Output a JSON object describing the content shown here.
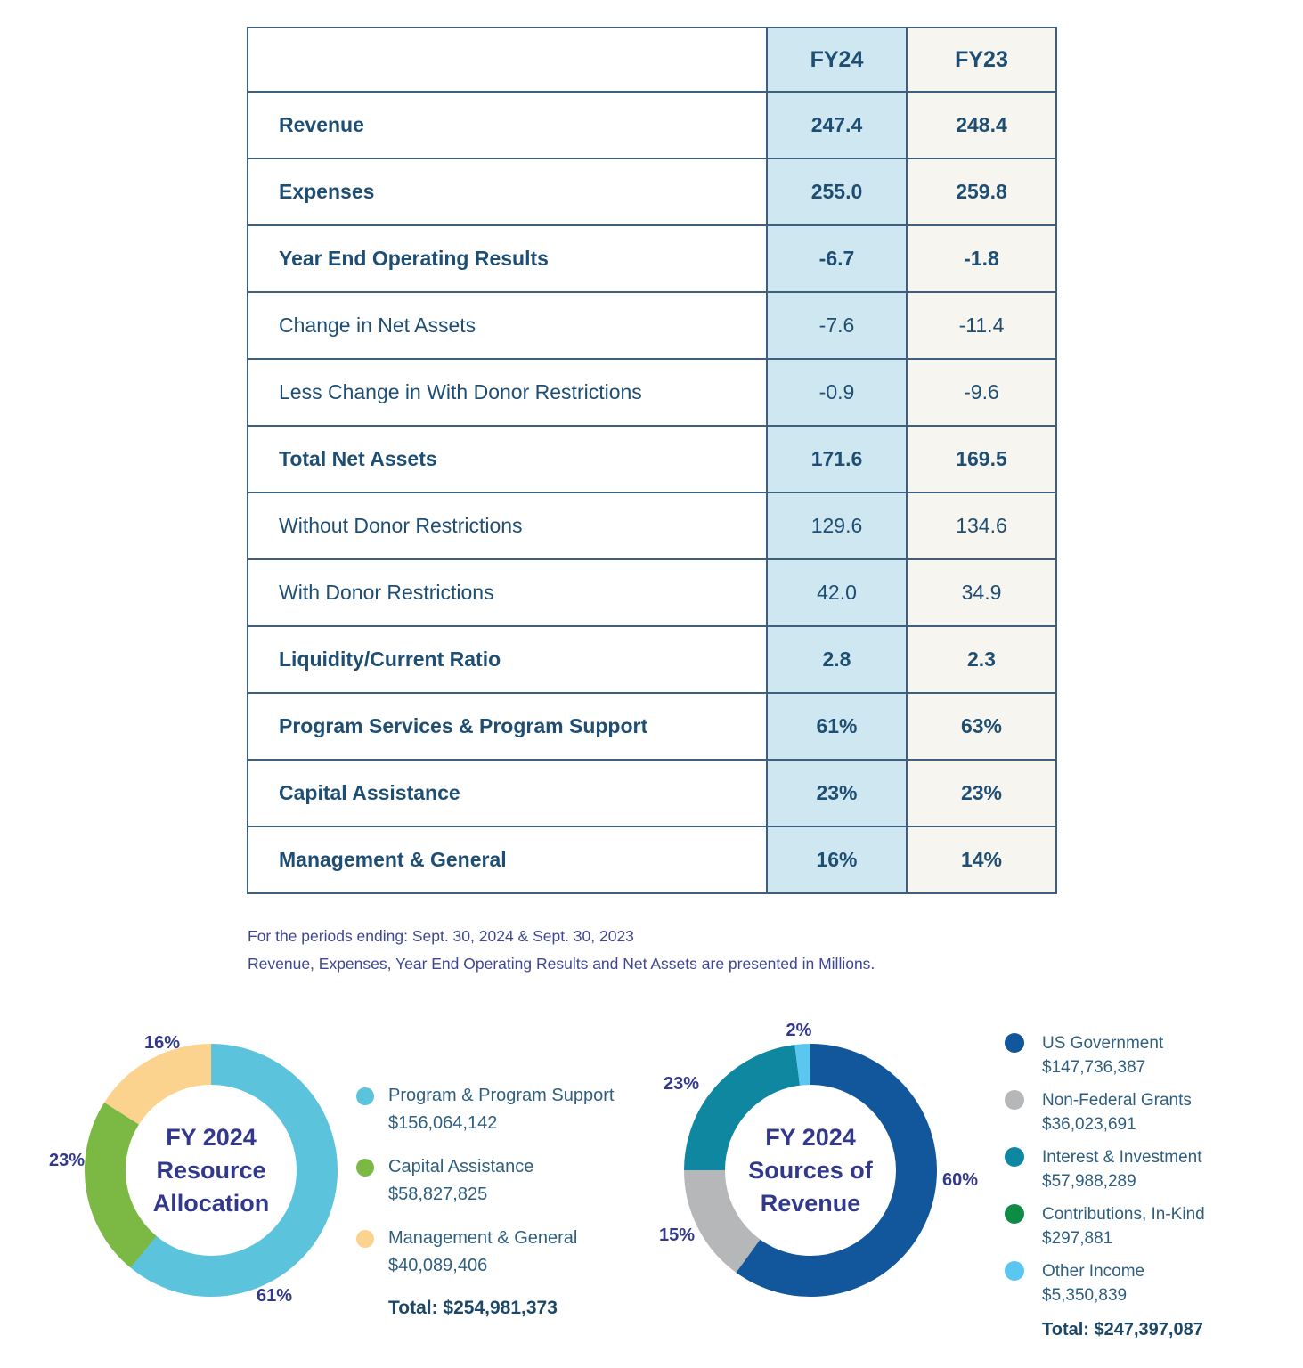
{
  "chart_data": [
    {
      "type": "table",
      "columns": [
        "",
        "FY24",
        "FY23"
      ],
      "rows": [
        [
          "Revenue",
          "247.4",
          "248.4"
        ],
        [
          "Expenses",
          "255.0",
          "259.8"
        ],
        [
          "Year End Operating Results",
          "-6.7",
          "-1.8"
        ],
        [
          "Change in Net Assets",
          "-7.6",
          "-11.4"
        ],
        [
          "Less Change in With Donor Restrictions",
          "-0.9",
          "-9.6"
        ],
        [
          "Total Net Assets",
          "171.6",
          "169.5"
        ],
        [
          "Without Donor Restrictions",
          "129.6",
          "134.6"
        ],
        [
          "With Donor Restrictions",
          "42.0",
          "34.9"
        ],
        [
          "Liquidity/Current Ratio",
          "2.8",
          "2.3"
        ],
        [
          "Program Services & Program Support",
          "61%",
          "63%"
        ],
        [
          "Capital Assistance",
          "23%",
          "23%"
        ],
        [
          "Management & General",
          "16%",
          "14%"
        ]
      ],
      "column_bg": {
        "FY24": "#CFE7F1",
        "FY23": "#F7F5EF"
      }
    },
    {
      "type": "pie",
      "title": "FY 2024\nResource\nAllocation",
      "legend_position": "right",
      "segments": [
        {
          "label": "Program & Program Support",
          "amount": "$156,064,142",
          "pct": 61,
          "pct_label": "61%",
          "color": "#5CC3DC"
        },
        {
          "label": "Capital Assistance",
          "amount": "$58,827,825",
          "pct": 23,
          "pct_label": "23%",
          "color": "#7CB944"
        },
        {
          "label": "Management & General",
          "amount": "$40,089,406",
          "pct": 16,
          "pct_label": "16%",
          "color": "#FBD28E"
        }
      ],
      "total_label": "Total: $254,981,373"
    },
    {
      "type": "pie",
      "title": "FY 2024\nSources of\nRevenue",
      "legend_position": "right",
      "segments": [
        {
          "label": "US Government",
          "amount": "$147,736,387",
          "pct": 60,
          "pct_label": "60%",
          "color": "#12569B"
        },
        {
          "label": "Non-Federal Grants",
          "amount": "$36,023,691",
          "pct": 15,
          "pct_label": "15%",
          "color": "#B5B7B9"
        },
        {
          "label": "Interest & Investment",
          "amount": "$57,988,289",
          "pct": 23,
          "pct_label": "23%",
          "color": "#0F87A0"
        },
        {
          "label": "Contributions, In-Kind",
          "amount": "$297,881",
          "pct": null,
          "pct_label": "",
          "color": "#0E8C46"
        },
        {
          "label": "Other Income",
          "amount": "$5,350,839",
          "pct": 2,
          "pct_label": "2%",
          "color": "#5BC6F0"
        }
      ],
      "total_label": "Total: $247,397,087"
    }
  ],
  "footnotes": {
    "line1": "For the periods ending: Sept. 30, 2024 & Sept. 30, 2023",
    "line2": "Revenue, Expenses, Year End Operating Results and Net Assets are presented in Millions."
  }
}
